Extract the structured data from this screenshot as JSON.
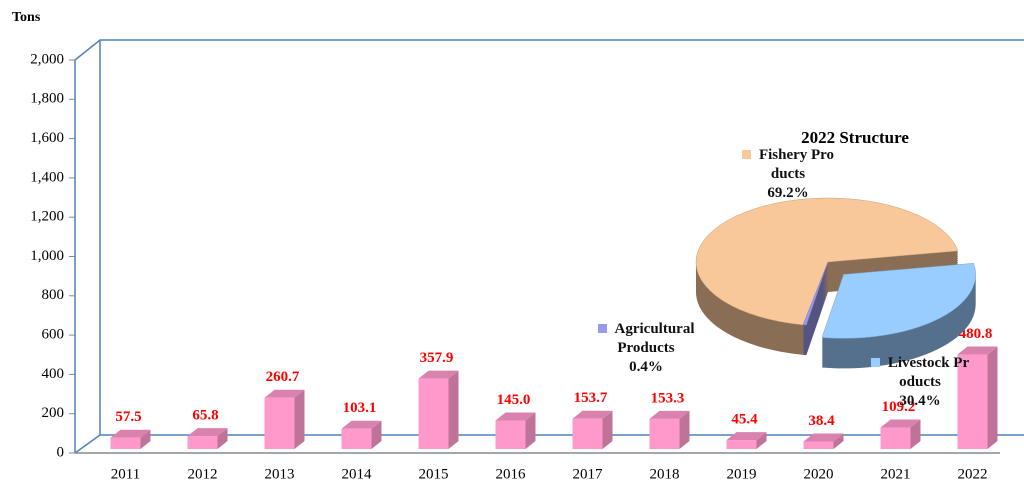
{
  "chart_data": [
    {
      "type": "bar",
      "y_label": "Tons",
      "categories": [
        "2011",
        "2012",
        "2013",
        "2014",
        "2015",
        "2016",
        "2017",
        "2018",
        "2019",
        "2020",
        "2021",
        "2022"
      ],
      "values": [
        57.5,
        65.8,
        260.7,
        103.1,
        357.9,
        145.0,
        153.7,
        153.3,
        45.4,
        38.4,
        109.2,
        480.8
      ],
      "value_labels": [
        "57.5",
        "65.8",
        "260.7",
        "103.1",
        "357.9",
        "145.0",
        "153.7",
        "153.3",
        "45.4",
        "38.4",
        "109.2",
        "480.8"
      ],
      "color": "#ff99cc",
      "ylim": [
        0,
        2000
      ],
      "yticks": [
        0,
        200,
        400,
        600,
        800,
        {
          "value": 1000,
          "label": "1,000"
        },
        {
          "value": 1200,
          "label": "1,200"
        },
        {
          "value": 1400,
          "label": "1,400"
        },
        {
          "value": 1600,
          "label": "1,600"
        },
        {
          "value": 1800,
          "label": "1,800"
        },
        {
          "value": 2000,
          "label": "2,000"
        }
      ]
    },
    {
      "type": "pie",
      "title": "2022 Structure",
      "categories": [
        "Fishery Products",
        "Agricultural Products",
        "Livestock Products"
      ],
      "values": [
        69.2,
        0.4,
        30.4
      ],
      "value_labels": [
        "69.2%",
        "0.4%",
        "30.4%"
      ],
      "colors": [
        "#f9c89a",
        "#9999ee",
        "#99ccff"
      ]
    }
  ]
}
